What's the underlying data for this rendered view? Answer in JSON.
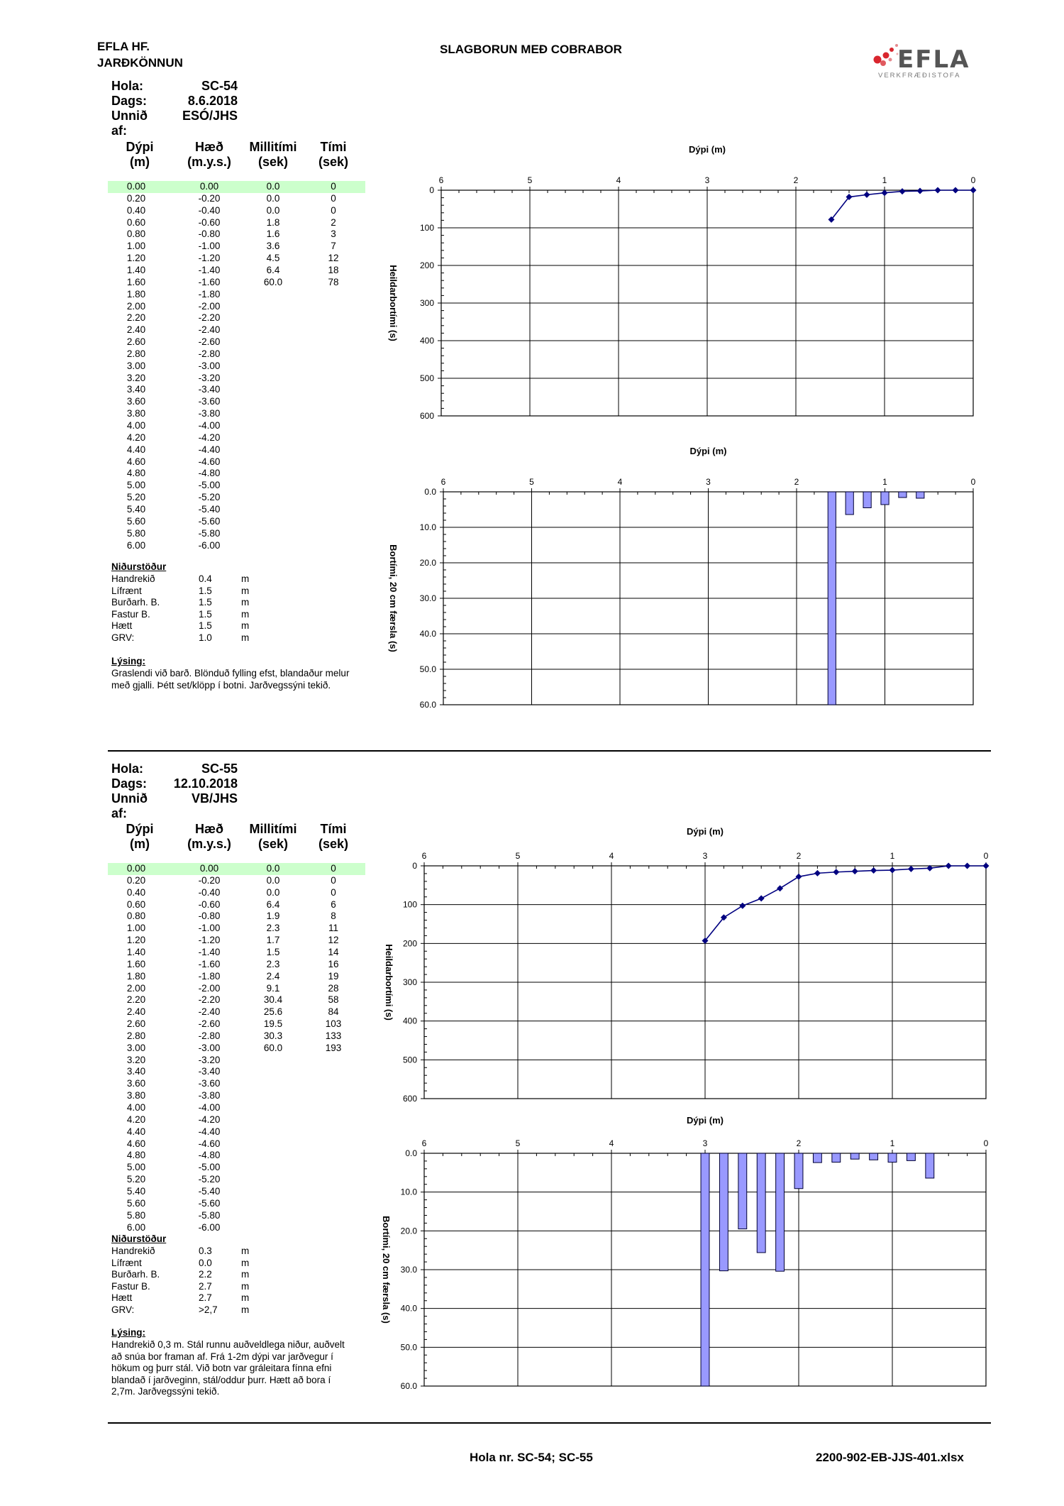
{
  "header": {
    "company": "EFLA HF.",
    "department": "JARÐKÖNNUN",
    "title": "SLAGBORUN MEÐ COBRABOR",
    "logo_text": "EFLA",
    "logo_subtitle": "VERKFRÆÐISTOFA"
  },
  "labels": {
    "hola": "Hola:",
    "dags": "Dags:",
    "unnid": "Unnið af:",
    "col_depth": "Dýpi",
    "col_depth_unit": "(m)",
    "col_elev": "Hæð",
    "col_elev_unit": "(m.y.s.)",
    "col_inter": "Millitími",
    "col_inter_unit": "(sek)",
    "col_time": "Tími",
    "col_time_unit": "(sek)",
    "results_title": "Niðurstöður",
    "desc_title": "Lýsing:",
    "unit_m": "m",
    "chart_x_label": "Dýpi (m)",
    "chart1_y_label": "Heildarbortími (s)",
    "chart2_y_label": "Bortími, 20 cm færsla (s)"
  },
  "holes": [
    {
      "id": "SC-54",
      "date": "8.6.2018",
      "by": "ESÓ/JHS",
      "rows": [
        {
          "d": "0.00",
          "h": "0.00",
          "m": "0.0",
          "t": "0"
        },
        {
          "d": "0.20",
          "h": "-0.20",
          "m": "0.0",
          "t": "0"
        },
        {
          "d": "0.40",
          "h": "-0.40",
          "m": "0.0",
          "t": "0"
        },
        {
          "d": "0.60",
          "h": "-0.60",
          "m": "1.8",
          "t": "2"
        },
        {
          "d": "0.80",
          "h": "-0.80",
          "m": "1.6",
          "t": "3"
        },
        {
          "d": "1.00",
          "h": "-1.00",
          "m": "3.6",
          "t": "7"
        },
        {
          "d": "1.20",
          "h": "-1.20",
          "m": "4.5",
          "t": "12"
        },
        {
          "d": "1.40",
          "h": "-1.40",
          "m": "6.4",
          "t": "18"
        },
        {
          "d": "1.60",
          "h": "-1.60",
          "m": "60.0",
          "t": "78"
        },
        {
          "d": "1.80",
          "h": "-1.80",
          "m": "",
          "t": ""
        },
        {
          "d": "2.00",
          "h": "-2.00",
          "m": "",
          "t": ""
        },
        {
          "d": "2.20",
          "h": "-2.20",
          "m": "",
          "t": ""
        },
        {
          "d": "2.40",
          "h": "-2.40",
          "m": "",
          "t": ""
        },
        {
          "d": "2.60",
          "h": "-2.60",
          "m": "",
          "t": ""
        },
        {
          "d": "2.80",
          "h": "-2.80",
          "m": "",
          "t": ""
        },
        {
          "d": "3.00",
          "h": "-3.00",
          "m": "",
          "t": ""
        },
        {
          "d": "3.20",
          "h": "-3.20",
          "m": "",
          "t": ""
        },
        {
          "d": "3.40",
          "h": "-3.40",
          "m": "",
          "t": ""
        },
        {
          "d": "3.60",
          "h": "-3.60",
          "m": "",
          "t": ""
        },
        {
          "d": "3.80",
          "h": "-3.80",
          "m": "",
          "t": ""
        },
        {
          "d": "4.00",
          "h": "-4.00",
          "m": "",
          "t": ""
        },
        {
          "d": "4.20",
          "h": "-4.20",
          "m": "",
          "t": ""
        },
        {
          "d": "4.40",
          "h": "-4.40",
          "m": "",
          "t": ""
        },
        {
          "d": "4.60",
          "h": "-4.60",
          "m": "",
          "t": ""
        },
        {
          "d": "4.80",
          "h": "-4.80",
          "m": "",
          "t": ""
        },
        {
          "d": "5.00",
          "h": "-5.00",
          "m": "",
          "t": ""
        },
        {
          "d": "5.20",
          "h": "-5.20",
          "m": "",
          "t": ""
        },
        {
          "d": "5.40",
          "h": "-5.40",
          "m": "",
          "t": ""
        },
        {
          "d": "5.60",
          "h": "-5.60",
          "m": "",
          "t": ""
        },
        {
          "d": "5.80",
          "h": "-5.80",
          "m": "",
          "t": ""
        },
        {
          "d": "6.00",
          "h": "-6.00",
          "m": "",
          "t": ""
        }
      ],
      "results": [
        {
          "label": "Handrekið",
          "value": "0.4"
        },
        {
          "label": "Lífrænt",
          "value": "1.5"
        },
        {
          "label": "Burðarh. B.",
          "value": "1.5"
        },
        {
          "label": "Fastur B.",
          "value": "1.5"
        },
        {
          "label": "Hætt",
          "value": "1.5"
        },
        {
          "label": "GRV:",
          "value": "1.0"
        }
      ],
      "description": [
        "Graslendi við barð. Blönduð fylling efst, blandaður melur",
        "með gjalli. Þétt set/klöpp í botni. Jarðvegssýni tekið."
      ]
    },
    {
      "id": "SC-55",
      "date": "12.10.2018",
      "by": "VB/JHS",
      "rows": [
        {
          "d": "0.00",
          "h": "0.00",
          "m": "0.0",
          "t": "0"
        },
        {
          "d": "0.20",
          "h": "-0.20",
          "m": "0.0",
          "t": "0"
        },
        {
          "d": "0.40",
          "h": "-0.40",
          "m": "0.0",
          "t": "0"
        },
        {
          "d": "0.60",
          "h": "-0.60",
          "m": "6.4",
          "t": "6"
        },
        {
          "d": "0.80",
          "h": "-0.80",
          "m": "1.9",
          "t": "8"
        },
        {
          "d": "1.00",
          "h": "-1.00",
          "m": "2.3",
          "t": "11"
        },
        {
          "d": "1.20",
          "h": "-1.20",
          "m": "1.7",
          "t": "12"
        },
        {
          "d": "1.40",
          "h": "-1.40",
          "m": "1.5",
          "t": "14"
        },
        {
          "d": "1.60",
          "h": "-1.60",
          "m": "2.3",
          "t": "16"
        },
        {
          "d": "1.80",
          "h": "-1.80",
          "m": "2.4",
          "t": "19"
        },
        {
          "d": "2.00",
          "h": "-2.00",
          "m": "9.1",
          "t": "28"
        },
        {
          "d": "2.20",
          "h": "-2.20",
          "m": "30.4",
          "t": "58"
        },
        {
          "d": "2.40",
          "h": "-2.40",
          "m": "25.6",
          "t": "84"
        },
        {
          "d": "2.60",
          "h": "-2.60",
          "m": "19.5",
          "t": "103"
        },
        {
          "d": "2.80",
          "h": "-2.80",
          "m": "30.3",
          "t": "133"
        },
        {
          "d": "3.00",
          "h": "-3.00",
          "m": "60.0",
          "t": "193"
        },
        {
          "d": "3.20",
          "h": "-3.20",
          "m": "",
          "t": ""
        },
        {
          "d": "3.40",
          "h": "-3.40",
          "m": "",
          "t": ""
        },
        {
          "d": "3.60",
          "h": "-3.60",
          "m": "",
          "t": ""
        },
        {
          "d": "3.80",
          "h": "-3.80",
          "m": "",
          "t": ""
        },
        {
          "d": "4.00",
          "h": "-4.00",
          "m": "",
          "t": ""
        },
        {
          "d": "4.20",
          "h": "-4.20",
          "m": "",
          "t": ""
        },
        {
          "d": "4.40",
          "h": "-4.40",
          "m": "",
          "t": ""
        },
        {
          "d": "4.60",
          "h": "-4.60",
          "m": "",
          "t": ""
        },
        {
          "d": "4.80",
          "h": "-4.80",
          "m": "",
          "t": ""
        },
        {
          "d": "5.00",
          "h": "-5.00",
          "m": "",
          "t": ""
        },
        {
          "d": "5.20",
          "h": "-5.20",
          "m": "",
          "t": ""
        },
        {
          "d": "5.40",
          "h": "-5.40",
          "m": "",
          "t": ""
        },
        {
          "d": "5.60",
          "h": "-5.60",
          "m": "",
          "t": ""
        },
        {
          "d": "5.80",
          "h": "-5.80",
          "m": "",
          "t": ""
        },
        {
          "d": "6.00",
          "h": "-6.00",
          "m": "",
          "t": ""
        }
      ],
      "results": [
        {
          "label": "Handrekið",
          "value": "0.3"
        },
        {
          "label": "Lífrænt",
          "value": "0.0"
        },
        {
          "label": "Burðarh. B.",
          "value": "2.2"
        },
        {
          "label": "Fastur B.",
          "value": "2.7"
        },
        {
          "label": "Hætt",
          "value": "2.7"
        },
        {
          "label": "GRV:",
          "value": ">2,7"
        }
      ],
      "description": [
        "Handrekið 0,3 m. Stál runnu auðveldlega niður, auðvelt",
        "að snúa bor framan af. Frá 1-2m dýpi var jarðvegur í",
        "hökum og þurr stál. Við botn var gráleitara fínna efni",
        "blandað í jarðveginn, stál/oddur þurr. Hætt að bora í",
        "2,7m. Jarðvegssýni tekið."
      ]
    }
  ],
  "chart_data": [
    {
      "type": "line",
      "hole": "SC-54",
      "xlabel": "Dýpi (m)",
      "ylabel": "Heildarbortími (s)",
      "xlim": [
        6,
        0
      ],
      "ylim": [
        0,
        600
      ],
      "x_ticks": [
        6,
        5,
        4,
        3,
        2,
        1,
        0
      ],
      "y_ticks": [
        0,
        100,
        200,
        300,
        400,
        500,
        600
      ],
      "x": [
        0.0,
        0.2,
        0.4,
        0.6,
        0.8,
        1.0,
        1.2,
        1.4,
        1.6
      ],
      "y": [
        0,
        0,
        0,
        2,
        3,
        7,
        12,
        18,
        78
      ],
      "color": "#000080"
    },
    {
      "type": "bar",
      "hole": "SC-54",
      "xlabel": "Dýpi (m)",
      "ylabel": "Bortími, 20 cm færsla (s)",
      "xlim": [
        6,
        0
      ],
      "ylim": [
        0,
        60
      ],
      "x_ticks": [
        6,
        5,
        4,
        3,
        2,
        1,
        0
      ],
      "y_ticks": [
        "0.0",
        "10.0",
        "20.0",
        "30.0",
        "40.0",
        "50.0",
        "60.0"
      ],
      "x": [
        0.6,
        0.8,
        1.0,
        1.2,
        1.4,
        1.6
      ],
      "values": [
        1.8,
        1.6,
        3.6,
        4.5,
        6.4,
        60.0
      ],
      "color": "#9999ff"
    },
    {
      "type": "line",
      "hole": "SC-55",
      "xlabel": "Dýpi (m)",
      "ylabel": "Heildarbortími (s)",
      "xlim": [
        6,
        0
      ],
      "ylim": [
        0,
        600
      ],
      "x_ticks": [
        6,
        5,
        4,
        3,
        2,
        1,
        0
      ],
      "y_ticks": [
        0,
        100,
        200,
        300,
        400,
        500,
        600
      ],
      "x": [
        0.0,
        0.2,
        0.4,
        0.6,
        0.8,
        1.0,
        1.2,
        1.4,
        1.6,
        1.8,
        2.0,
        2.2,
        2.4,
        2.6,
        2.8,
        3.0
      ],
      "y": [
        0,
        0,
        0,
        6,
        8,
        11,
        12,
        14,
        16,
        19,
        28,
        58,
        84,
        103,
        133,
        193
      ],
      "color": "#000080"
    },
    {
      "type": "bar",
      "hole": "SC-55",
      "xlabel": "Dýpi (m)",
      "ylabel": "Bortími, 20 cm færsla (s)",
      "xlim": [
        6,
        0
      ],
      "ylim": [
        0,
        60
      ],
      "x_ticks": [
        6,
        5,
        4,
        3,
        2,
        1,
        0
      ],
      "y_ticks": [
        "0.0",
        "10.0",
        "20.0",
        "30.0",
        "40.0",
        "50.0",
        "60.0"
      ],
      "x": [
        0.6,
        0.8,
        1.0,
        1.2,
        1.4,
        1.6,
        1.8,
        2.0,
        2.2,
        2.4,
        2.6,
        2.8,
        3.0
      ],
      "values": [
        6.4,
        1.9,
        2.3,
        1.7,
        1.5,
        2.3,
        2.4,
        9.1,
        30.4,
        25.6,
        19.5,
        30.3,
        60.0
      ],
      "color": "#9999ff"
    }
  ],
  "footer": {
    "holes": "Hola nr. SC-54; SC-55",
    "file": "2200-902-EB-JJS-401.xlsx"
  }
}
